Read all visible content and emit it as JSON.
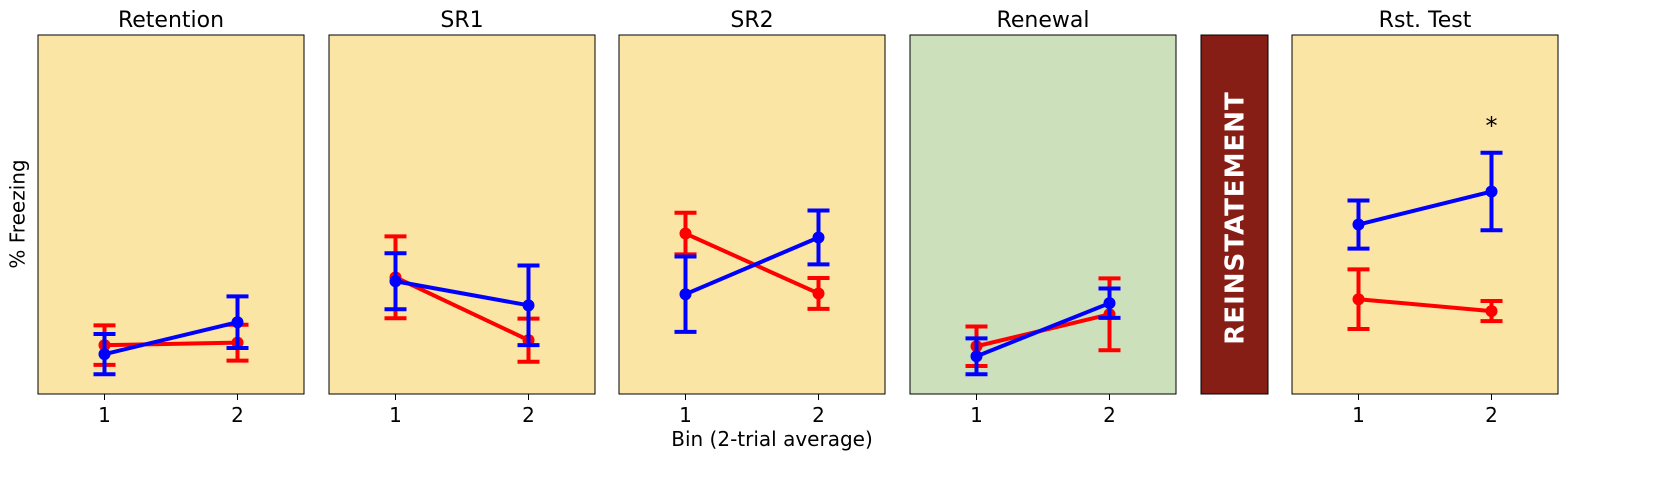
{
  "figure": {
    "ylabel": "% Freezing",
    "xlabel": "Bin (2-trial average)",
    "banner_text": "REINSTATEMENT"
  },
  "colors": {
    "panel_a": "#fae5a5",
    "panel_b": "#cce0bb",
    "banner": "#861e15",
    "red_series": "#ff0000",
    "blue_series": "#0000ff"
  },
  "chart_data": [
    {
      "type": "line",
      "title": "Retention",
      "background": "#fae5a5",
      "categories": [
        "1",
        "2"
      ],
      "ylim": [
        0,
        100
      ],
      "series": [
        {
          "color": "red",
          "values": [
            13.6,
            14.3
          ],
          "err": [
            5.5,
            5.0
          ]
        },
        {
          "color": "blue",
          "values": [
            11.1,
            20.0
          ],
          "err": [
            5.6,
            7.2
          ]
        }
      ],
      "annotations": []
    },
    {
      "type": "line",
      "title": "SR1",
      "background": "#fae5a5",
      "categories": [
        "1",
        "2"
      ],
      "ylim": [
        0,
        100
      ],
      "series": [
        {
          "color": "red",
          "values": [
            32.5,
            15.0
          ],
          "err": [
            11.4,
            6.0
          ]
        },
        {
          "color": "blue",
          "values": [
            31.4,
            24.7
          ],
          "err": [
            7.8,
            11.1
          ]
        }
      ],
      "annotations": []
    },
    {
      "type": "line",
      "title": "SR2",
      "background": "#fae5a5",
      "categories": [
        "1",
        "2"
      ],
      "ylim": [
        0,
        100
      ],
      "series": [
        {
          "color": "red",
          "values": [
            44.7,
            28.0
          ],
          "err": [
            5.8,
            4.3
          ]
        },
        {
          "color": "blue",
          "values": [
            27.8,
            43.6
          ],
          "err": [
            10.5,
            7.5
          ]
        }
      ],
      "annotations": []
    },
    {
      "type": "line",
      "title": "Renewal",
      "background": "#cce0bb",
      "categories": [
        "1",
        "2"
      ],
      "ylim": [
        0,
        100
      ],
      "series": [
        {
          "color": "red",
          "values": [
            13.3,
            22.2
          ],
          "err": [
            5.5,
            10.0
          ]
        },
        {
          "color": "blue",
          "values": [
            10.5,
            25.3
          ],
          "err": [
            5.0,
            4.1
          ]
        }
      ],
      "annotations": []
    },
    {
      "type": "line",
      "title": "Rst. Test",
      "background": "#fae5a5",
      "categories": [
        "1",
        "2"
      ],
      "ylim": [
        0,
        100
      ],
      "series": [
        {
          "color": "red",
          "values": [
            26.4,
            23.1
          ],
          "err": [
            8.3,
            2.8
          ]
        },
        {
          "color": "blue",
          "values": [
            47.2,
            56.4
          ],
          "err": [
            6.7,
            10.8
          ]
        }
      ],
      "annotations": [
        {
          "text": "*",
          "category": "2",
          "y": 74.7
        }
      ]
    }
  ]
}
